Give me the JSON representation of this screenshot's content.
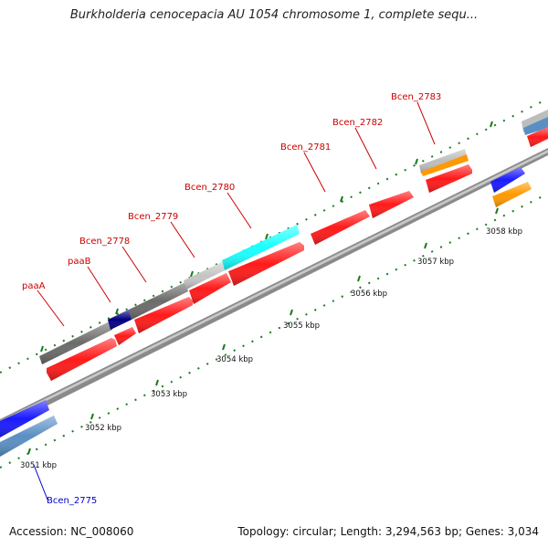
{
  "title": "Burkholderia cenocepacia AU 1054 chromosome 1, complete sequ...",
  "footer": {
    "accession": "Accession: NC_008060",
    "topology": "Topology: circular; Length: 3,294,563 bp; Genes: 3,034"
  },
  "scale_labels": [
    "3051 kbp",
    "3052 kbp",
    "3053 kbp",
    "3054 kbp",
    "3055 kbp",
    "3056 kbp",
    "3057 kbp",
    "3058 kbp"
  ],
  "gene_labels": [
    {
      "text": "paaA",
      "color": "#cc0000"
    },
    {
      "text": "paaB",
      "color": "#cc0000"
    },
    {
      "text": "Bcen_2778",
      "color": "#cc0000"
    },
    {
      "text": "Bcen_2779",
      "color": "#cc0000"
    },
    {
      "text": "Bcen_2780",
      "color": "#cc0000"
    },
    {
      "text": "Bcen_2781",
      "color": "#cc0000"
    },
    {
      "text": "Bcen_2782",
      "color": "#cc0000"
    },
    {
      "text": "Bcen_2783",
      "color": "#cc0000"
    },
    {
      "text": "Bcen_2775",
      "color": "#0000cc"
    }
  ],
  "colors": {
    "cds_red": "#ff1a1a",
    "cds_blue": "#1a1aff",
    "cds_navy": "#000080",
    "cds_cyan": "#19ffff",
    "cds_gray_dark": "#6b6b6b",
    "cds_gray_light": "#c4c4c4",
    "cds_orange": "#ff9900",
    "cds_steel": "#5a8fc4",
    "backbone": "#999999",
    "tick_green": "#1b7a1b"
  }
}
